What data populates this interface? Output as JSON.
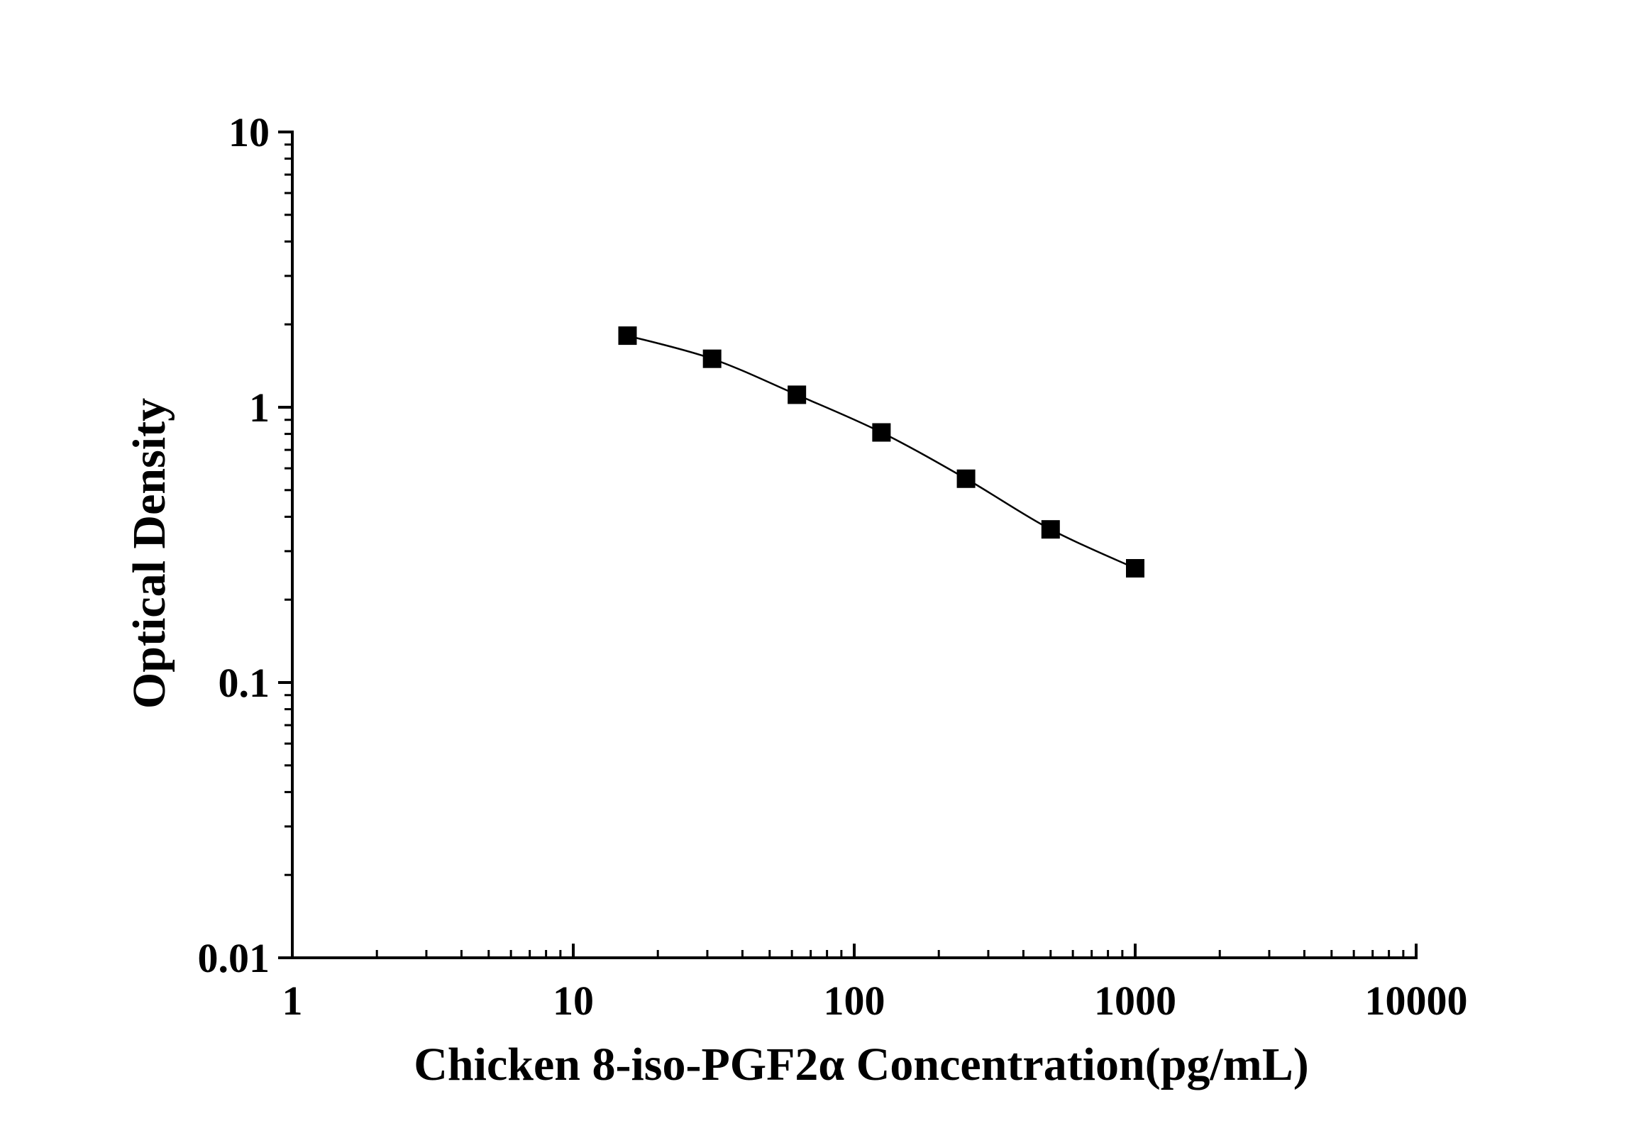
{
  "chart_data": {
    "type": "scatter",
    "title": "",
    "xlabel": "Chicken 8-iso-PGF2α Concentration(pg/mL)",
    "ylabel": "Optical Density",
    "x_scale": "log",
    "y_scale": "log",
    "xlim": [
      1,
      10000
    ],
    "ylim": [
      0.01,
      10
    ],
    "x_ticks": [
      1,
      10,
      100,
      1000,
      10000
    ],
    "y_ticks": [
      0.01,
      0.1,
      1,
      10
    ],
    "x_tick_labels": [
      "1",
      "10",
      "100",
      "1000",
      "10000"
    ],
    "y_tick_labels": [
      "0.01",
      "0.1",
      "1",
      "10"
    ],
    "grid": false,
    "marker": "square",
    "fitted_curve": true,
    "colors": {
      "series": "#000000",
      "axes": "#000000",
      "background": "#ffffff"
    },
    "series": [
      {
        "x": [
          15.6,
          31.2,
          62.5,
          125,
          250,
          500,
          1000
        ],
        "y": [
          1.82,
          1.5,
          1.11,
          0.81,
          0.55,
          0.36,
          0.26
        ]
      }
    ]
  }
}
